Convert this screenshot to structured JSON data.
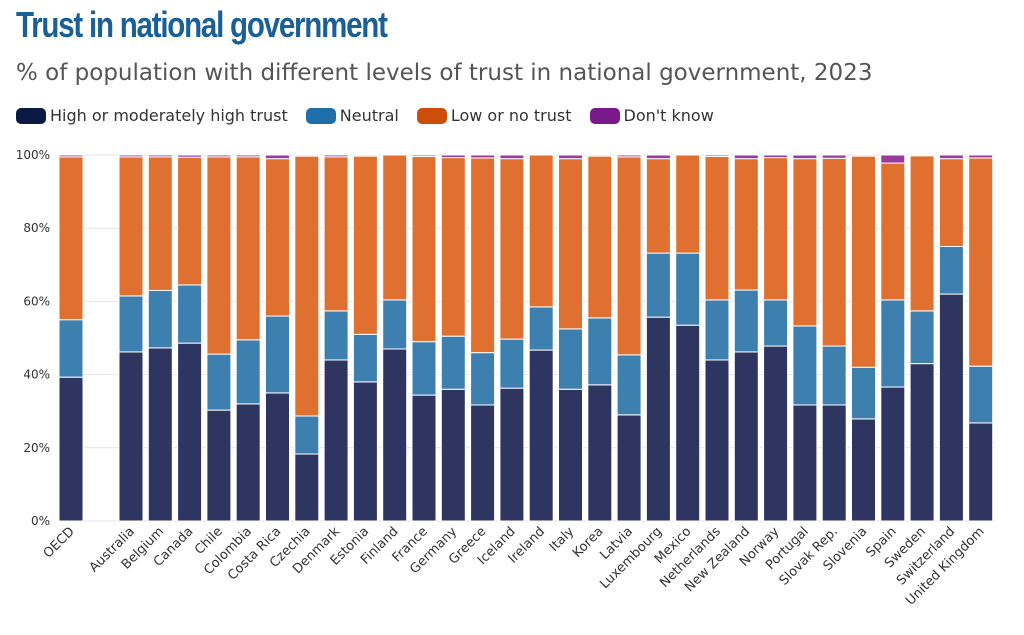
{
  "chart_data": {
    "type": "stacked-bar",
    "title": "Trust in national government",
    "subtitle": "% of population with different levels of trust in national government, 2023",
    "ylim": [
      0,
      100
    ],
    "yticks": [
      "0%",
      "20%",
      "40%",
      "60%",
      "80%",
      "100%"
    ],
    "grid": true,
    "legend_placement": "top-left",
    "categories": [
      "OECD",
      "Australia",
      "Belgium",
      "Canada",
      "Chile",
      "Colombia",
      "Costa Rica",
      "Czechia",
      "Denmark",
      "Estonia",
      "Finland",
      "France",
      "Germany",
      "Greece",
      "Iceland",
      "Ireland",
      "Italy",
      "Korea",
      "Latvia",
      "Luxembourg",
      "Mexico",
      "Netherlands",
      "New Zealand",
      "Norway",
      "Portugal",
      "Slovak Rep.",
      "Slovenia",
      "Spain",
      "Sweden",
      "Switzerland",
      "United Kingdom"
    ],
    "series": [
      {
        "name": "High or moderately high trust",
        "color": "#0b1a45",
        "values": [
          39.3,
          46.2,
          47.3,
          48.6,
          30.3,
          32,
          35,
          18.3,
          44,
          38,
          47,
          34.4,
          36,
          31.7,
          36.3,
          46.7,
          36,
          37.2,
          29,
          55.7,
          53.5,
          44,
          46.2,
          47.8,
          31.7,
          31.7,
          27.9,
          36.6,
          43,
          62,
          26.8
        ]
      },
      {
        "name": "Neutral",
        "color": "#1f6fa8",
        "values": [
          15.7,
          15.3,
          15.7,
          15.9,
          15.3,
          17.5,
          21,
          10.4,
          13.4,
          13,
          13.4,
          14.6,
          14.5,
          14.3,
          13.4,
          11.8,
          16.5,
          18.3,
          16.4,
          17.5,
          19.7,
          16.4,
          16.9,
          12.6,
          21.6,
          16.1,
          14.1,
          23.8,
          14.4,
          13,
          15.5
        ]
      },
      {
        "name": "Low or no trust",
        "color": "#cc4e0a",
        "values": [
          44.5,
          38,
          36.5,
          34.9,
          53.9,
          50,
          43,
          71,
          42.1,
          48.7,
          39.6,
          50.6,
          48.8,
          53.2,
          49.3,
          41.5,
          46.5,
          44.2,
          54.1,
          25.8,
          26.8,
          39.2,
          35.9,
          38.9,
          45.7,
          51.3,
          57.7,
          37.4,
          42.4,
          24,
          56.9
        ]
      },
      {
        "name": "Don't know",
        "color": "#7a1a8a",
        "values": [
          0.5,
          0.5,
          0.5,
          0.6,
          0.5,
          0.5,
          1,
          0.3,
          0.5,
          0.3,
          0,
          0.4,
          0.7,
          0.8,
          1,
          0,
          1,
          0.3,
          0.5,
          1,
          0,
          0.4,
          1,
          0.7,
          1,
          0.9,
          0.3,
          2.2,
          0.2,
          1,
          0.8
        ]
      }
    ]
  }
}
